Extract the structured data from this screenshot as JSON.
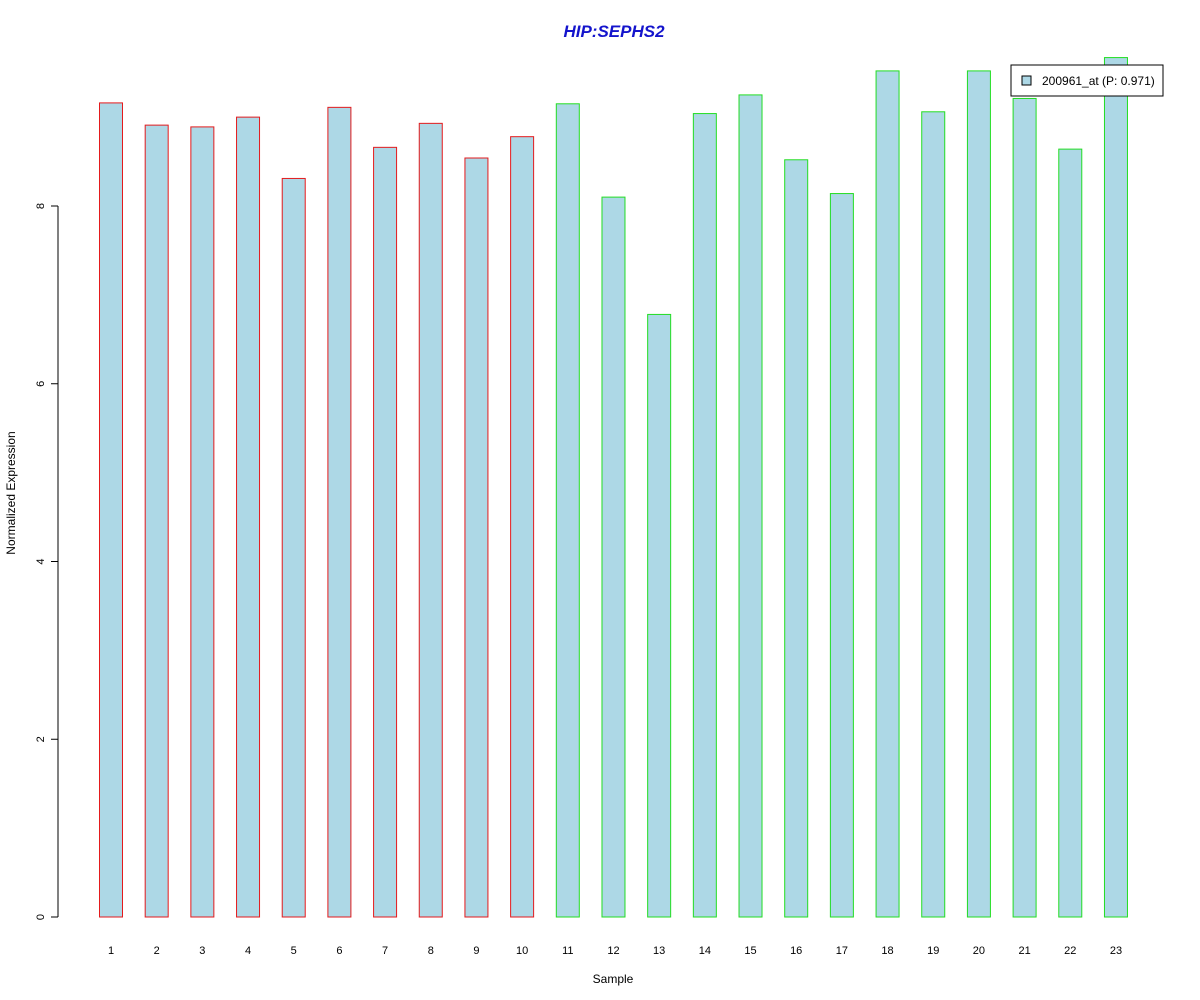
{
  "chart_data": {
    "type": "bar",
    "title": "HIP:SEPHS2",
    "xlabel": "Sample",
    "ylabel": "Normalized Expression",
    "categories": [
      "1",
      "2",
      "3",
      "4",
      "5",
      "6",
      "7",
      "8",
      "9",
      "10",
      "11",
      "12",
      "13",
      "14",
      "15",
      "16",
      "17",
      "18",
      "19",
      "20",
      "21",
      "22",
      "23"
    ],
    "series": [
      {
        "name": "200961_at (P: 0.971)",
        "values": [
          9.16,
          8.91,
          8.89,
          9.0,
          8.31,
          9.11,
          8.66,
          8.93,
          8.54,
          8.78,
          9.15,
          8.1,
          6.78,
          9.04,
          9.25,
          8.52,
          8.14,
          9.52,
          9.06,
          9.52,
          9.21,
          8.64,
          9.67
        ]
      }
    ],
    "group_border_colors": [
      "#e41a1c",
      "#e41a1c",
      "#e41a1c",
      "#e41a1c",
      "#e41a1c",
      "#e41a1c",
      "#e41a1c",
      "#e41a1c",
      "#e41a1c",
      "#e41a1c",
      "#22dd22",
      "#22dd22",
      "#22dd22",
      "#22dd22",
      "#22dd22",
      "#22dd22",
      "#22dd22",
      "#22dd22",
      "#22dd22",
      "#22dd22",
      "#22dd22",
      "#22dd22",
      "#22dd22"
    ],
    "yticks": [
      "0",
      "2",
      "4",
      "6",
      "8"
    ],
    "ylim": [
      0,
      9.8
    ],
    "bar_fill": "#add8e6",
    "title_color": "#1414cc",
    "grid": false,
    "legend_position": "top-right"
  }
}
